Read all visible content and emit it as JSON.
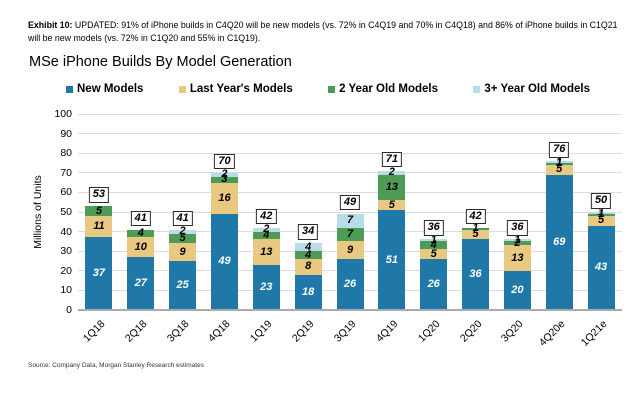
{
  "header": {
    "exhibit_label": "Exhibit 10:",
    "exhibit_text": " UPDATED: 91% of iPhone builds in C4Q20 will be new models (vs. 72% in C4Q19 and 70% in C4Q18) and 86% of iPhone builds in C1Q21 will be new models (vs. 72% in C1Q20 and 55% in C1Q19)."
  },
  "title": "MSe iPhone Builds By Model Generation",
  "source": "Source: Company Data, Morgan Stanley Research estimates",
  "colors": {
    "new_models": "#1F78A8",
    "last_years_models": "#E9C982",
    "two_year_old_models": "#4E9B57",
    "three_plus_year_old_models": "#B9DCE9",
    "gridline": "#DCDCDC",
    "axis": "#ABABAB",
    "label_on_blue": "#ffffff",
    "label_on_light": "#000000"
  },
  "chart_data": {
    "type": "bar",
    "stacked": true,
    "title": "MSe iPhone Builds By Model Generation",
    "xlabel": "",
    "ylabel": "Millions of Units",
    "ylim": [
      0,
      100
    ],
    "ytick_step": 10,
    "grid": true,
    "legend_position": "top",
    "categories": [
      "1Q18",
      "2Q18",
      "3Q18",
      "4Q18",
      "1Q19",
      "2Q19",
      "3Q19",
      "4Q19",
      "1Q20",
      "2Q20",
      "3Q20",
      "4Q20e",
      "1Q21e"
    ],
    "series": [
      {
        "name": "New Models",
        "color": "#1F78A8",
        "label_color": "#ffffff",
        "values": [
          37,
          27,
          25,
          49,
          23,
          18,
          26,
          51,
          26,
          36,
          20,
          69,
          43
        ]
      },
      {
        "name": "Last Year's Models",
        "color": "#E9C982",
        "label_color": "#000000",
        "values": [
          11,
          10,
          9,
          16,
          13,
          8,
          9,
          5,
          5,
          5,
          13,
          5,
          5
        ]
      },
      {
        "name": "2 Year Old Models",
        "color": "#4E9B57",
        "label_color": "#000000",
        "values": [
          5,
          4,
          5,
          3,
          4,
          4,
          7,
          13,
          4,
          1,
          2,
          1,
          1
        ]
      },
      {
        "name": "3+ Year Old Models",
        "color": "#B9DCE9",
        "label_color": "#000000",
        "values": [
          0,
          0,
          2,
          2,
          2,
          4,
          7,
          2,
          1,
          0,
          1,
          1,
          1
        ]
      }
    ],
    "totals": [
      53,
      41,
      41,
      70,
      42,
      34,
      49,
      71,
      36,
      42,
      36,
      76,
      50
    ]
  }
}
